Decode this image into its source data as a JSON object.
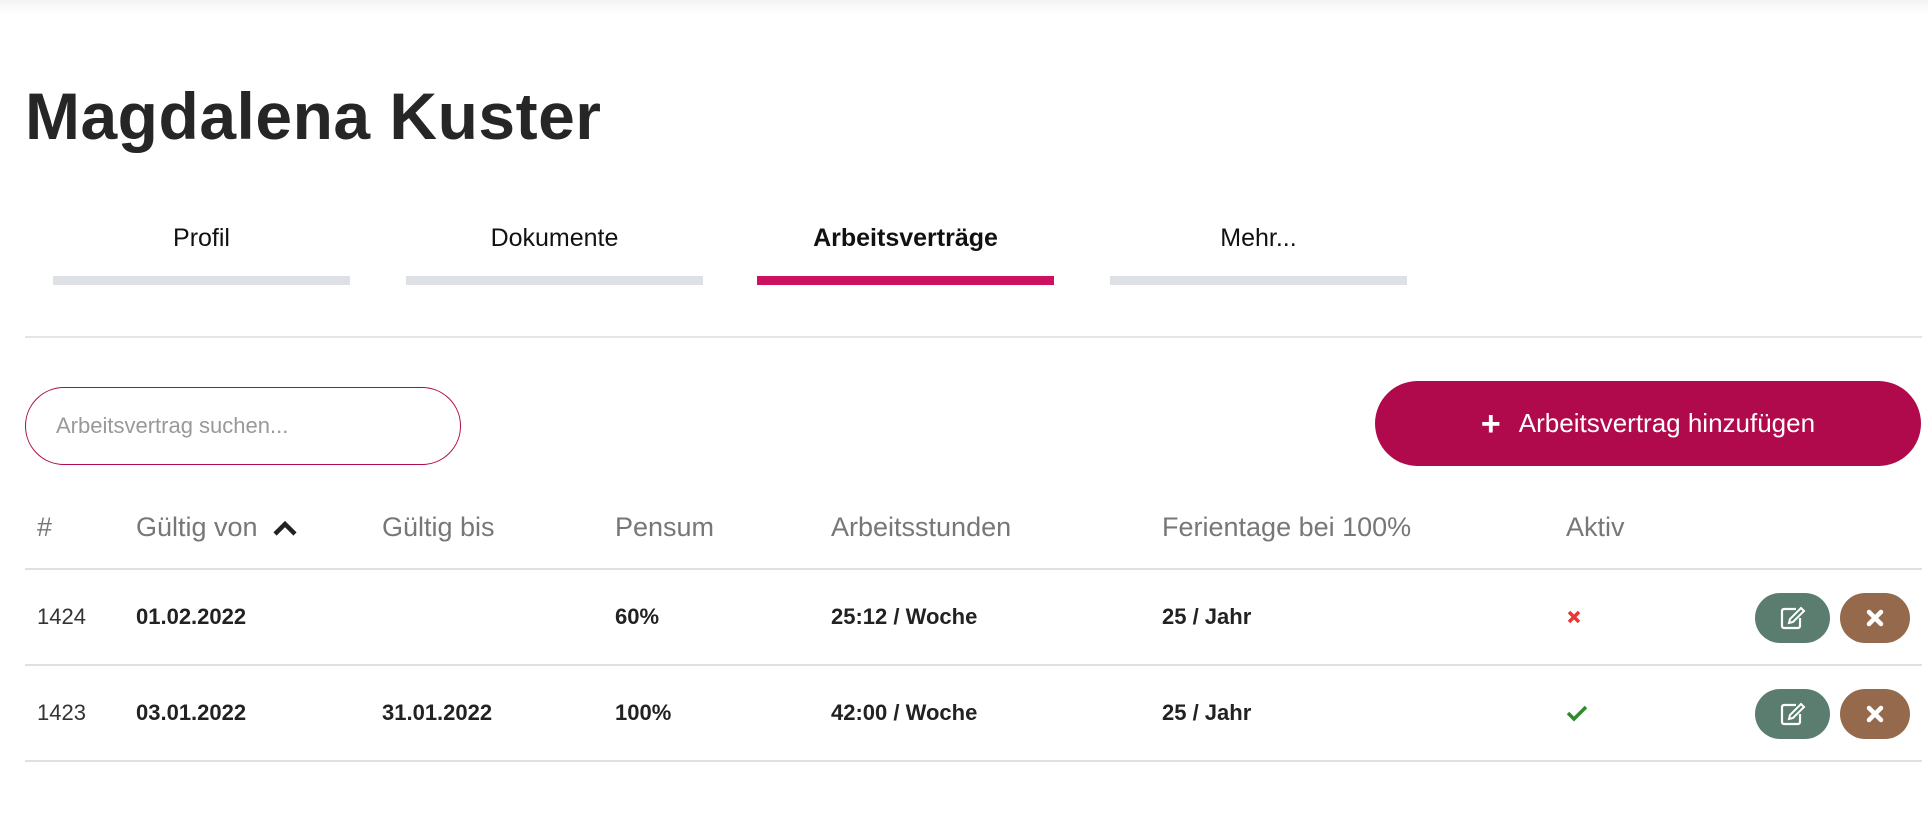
{
  "page_title": "Magdalena Kuster",
  "tabs": [
    {
      "label": "Profil",
      "active": false
    },
    {
      "label": "Dokumente",
      "active": false
    },
    {
      "label": "Arbeitsverträge",
      "active": true
    },
    {
      "label": "Mehr...",
      "active": false
    }
  ],
  "search": {
    "placeholder": "Arbeitsvertrag suchen...",
    "value": ""
  },
  "add_button": {
    "label": "Arbeitsvertrag hinzufügen",
    "icon": "plus-icon"
  },
  "table": {
    "columns": [
      "#",
      "Gültig von",
      "Gültig bis",
      "Pensum",
      "Arbeitsstunden",
      "Ferientage bei 100%",
      "Aktiv"
    ],
    "sort": {
      "column": "Gültig von",
      "direction": "ascending"
    },
    "rows": [
      {
        "id": "1424",
        "valid_from": "01.02.2022",
        "valid_to": "",
        "pensum": "60%",
        "hours": "25:12 / Woche",
        "vacation": "25 / Jahr",
        "active": false
      },
      {
        "id": "1423",
        "valid_from": "03.01.2022",
        "valid_to": "31.01.2022",
        "pensum": "100%",
        "hours": "42:00 / Woche",
        "vacation": "25 / Jahr",
        "active": true
      }
    ]
  },
  "colors": {
    "accent": "#b00a4c",
    "tab_active": "#cc1160",
    "edit": "#5a7d6f",
    "delete": "#95694c",
    "inactive": "#e53935",
    "active": "#2e8b2e"
  }
}
